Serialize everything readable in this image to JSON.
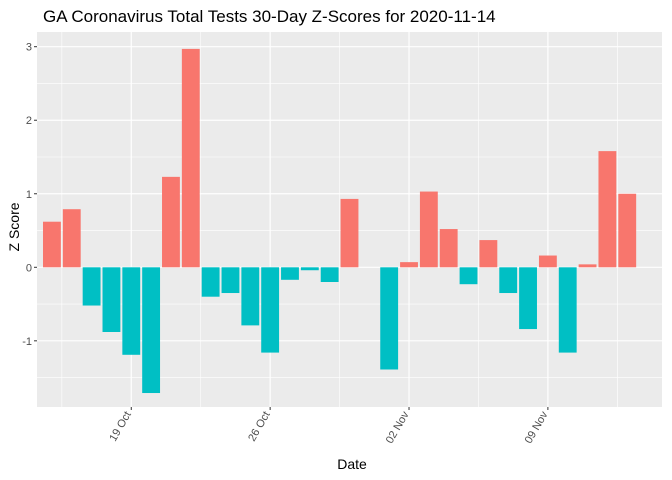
{
  "chart_data": {
    "type": "bar",
    "title": "GA Coronavirus Total Tests 30-Day Z-Scores for 2020-11-14",
    "xlabel": "Date",
    "ylabel": "Z Score",
    "x": [
      "2020-10-15",
      "2020-10-16",
      "2020-10-17",
      "2020-10-18",
      "2020-10-19",
      "2020-10-20",
      "2020-10-21",
      "2020-10-22",
      "2020-10-23",
      "2020-10-24",
      "2020-10-25",
      "2020-10-26",
      "2020-10-27",
      "2020-10-28",
      "2020-10-29",
      "2020-10-30",
      "2020-10-31",
      "2020-11-01",
      "2020-11-02",
      "2020-11-03",
      "2020-11-04",
      "2020-11-05",
      "2020-11-06",
      "2020-11-07",
      "2020-11-08",
      "2020-11-09",
      "2020-11-10",
      "2020-11-11",
      "2020-11-12",
      "2020-11-13",
      "2020-11-14"
    ],
    "values": [
      0.62,
      0.79,
      -0.52,
      -0.88,
      -1.19,
      -1.71,
      1.23,
      2.97,
      -0.4,
      -0.35,
      -0.79,
      -1.16,
      -0.17,
      -0.04,
      -0.2,
      0.93,
      0.0,
      -1.39,
      0.07,
      1.03,
      0.52,
      -0.23,
      0.37,
      -0.35,
      -0.84,
      0.16,
      -1.16,
      0.04,
      1.58,
      1.0,
      0.0
    ],
    "positive_color": "#F8766D",
    "negative_color": "#00BFC4",
    "panel_color": "#EBEBEB",
    "x_ticks": [
      {
        "date": "2020-10-19",
        "label": "19 Oct"
      },
      {
        "date": "2020-10-26",
        "label": "26 Oct"
      },
      {
        "date": "2020-11-02",
        "label": "02 Nov"
      },
      {
        "date": "2020-11-09",
        "label": "09 Nov"
      }
    ],
    "y_ticks": [
      -1,
      0,
      1,
      2,
      3
    ],
    "ylim": [
      -1.9,
      3.2
    ],
    "grid": true,
    "legend": "none"
  }
}
